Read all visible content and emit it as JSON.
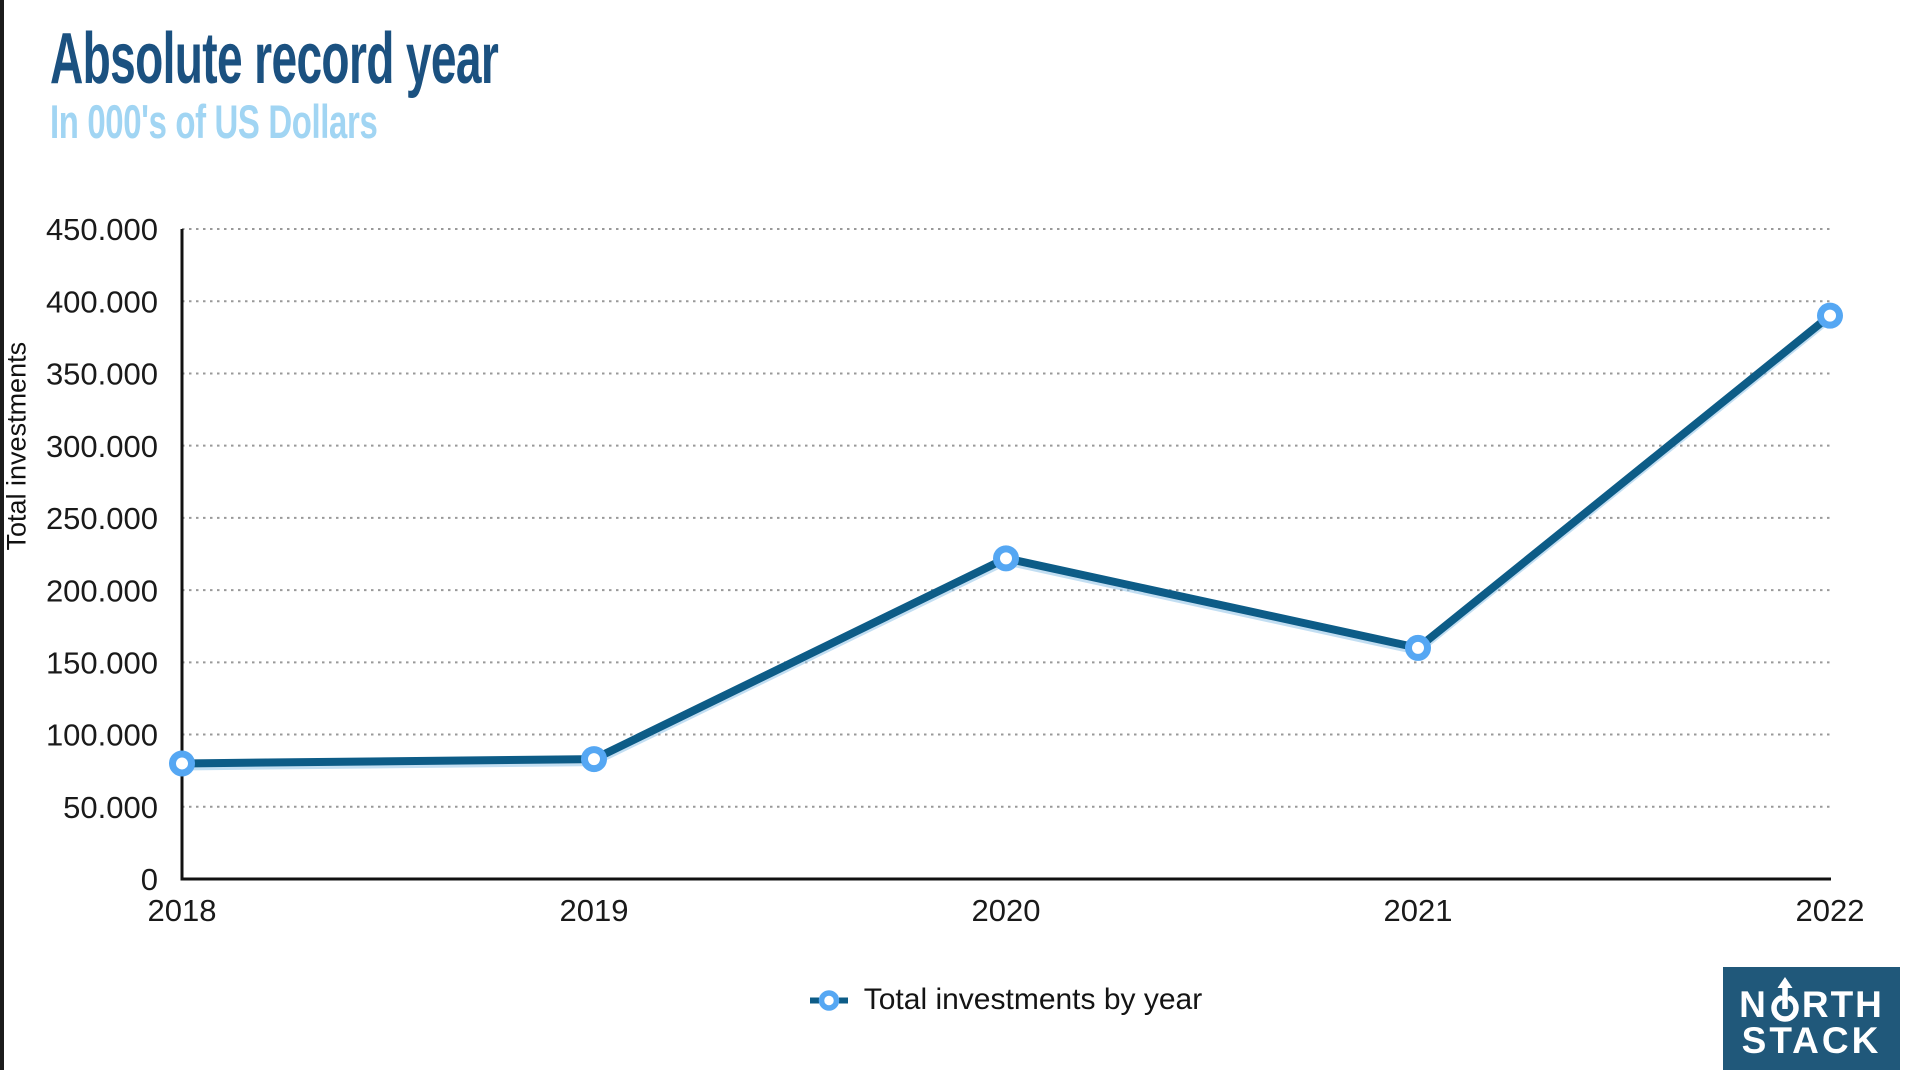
{
  "header": {
    "title": "Absolute record year",
    "subtitle": "In 000's of US Dollars",
    "title_color": "#1b5180",
    "subtitle_color": "#a1d5f3"
  },
  "chart_data": {
    "type": "line",
    "title": "Absolute record year",
    "subtitle": "In 000's of US Dollars",
    "categories": [
      "2018",
      "2019",
      "2020",
      "2021",
      "2022"
    ],
    "series": [
      {
        "name": "Total investments by year",
        "values": [
          80000,
          83000,
          222000,
          160000,
          390000
        ]
      }
    ],
    "xlabel": "",
    "ylabel": "Total investments",
    "ylim": [
      0,
      450000
    ],
    "ytick_step": 50000,
    "ytick_labels": [
      "0",
      "50.000",
      "100.000",
      "150.000",
      "200.000",
      "250.000",
      "300.000",
      "350.000",
      "400.000",
      "450.000"
    ],
    "grid": "horizontal-dotted",
    "legend_position": "bottom-center",
    "line_color": "#0d5c87",
    "marker_color": "#55a7f3",
    "gridline_color": "#999999",
    "axis_color": "#111111"
  },
  "legend": {
    "label": "Total investments by year"
  },
  "logo": {
    "line1_prefix": "N",
    "line1_suffix": "RTH",
    "line2": "STACK",
    "bg_color": "#20587a"
  }
}
